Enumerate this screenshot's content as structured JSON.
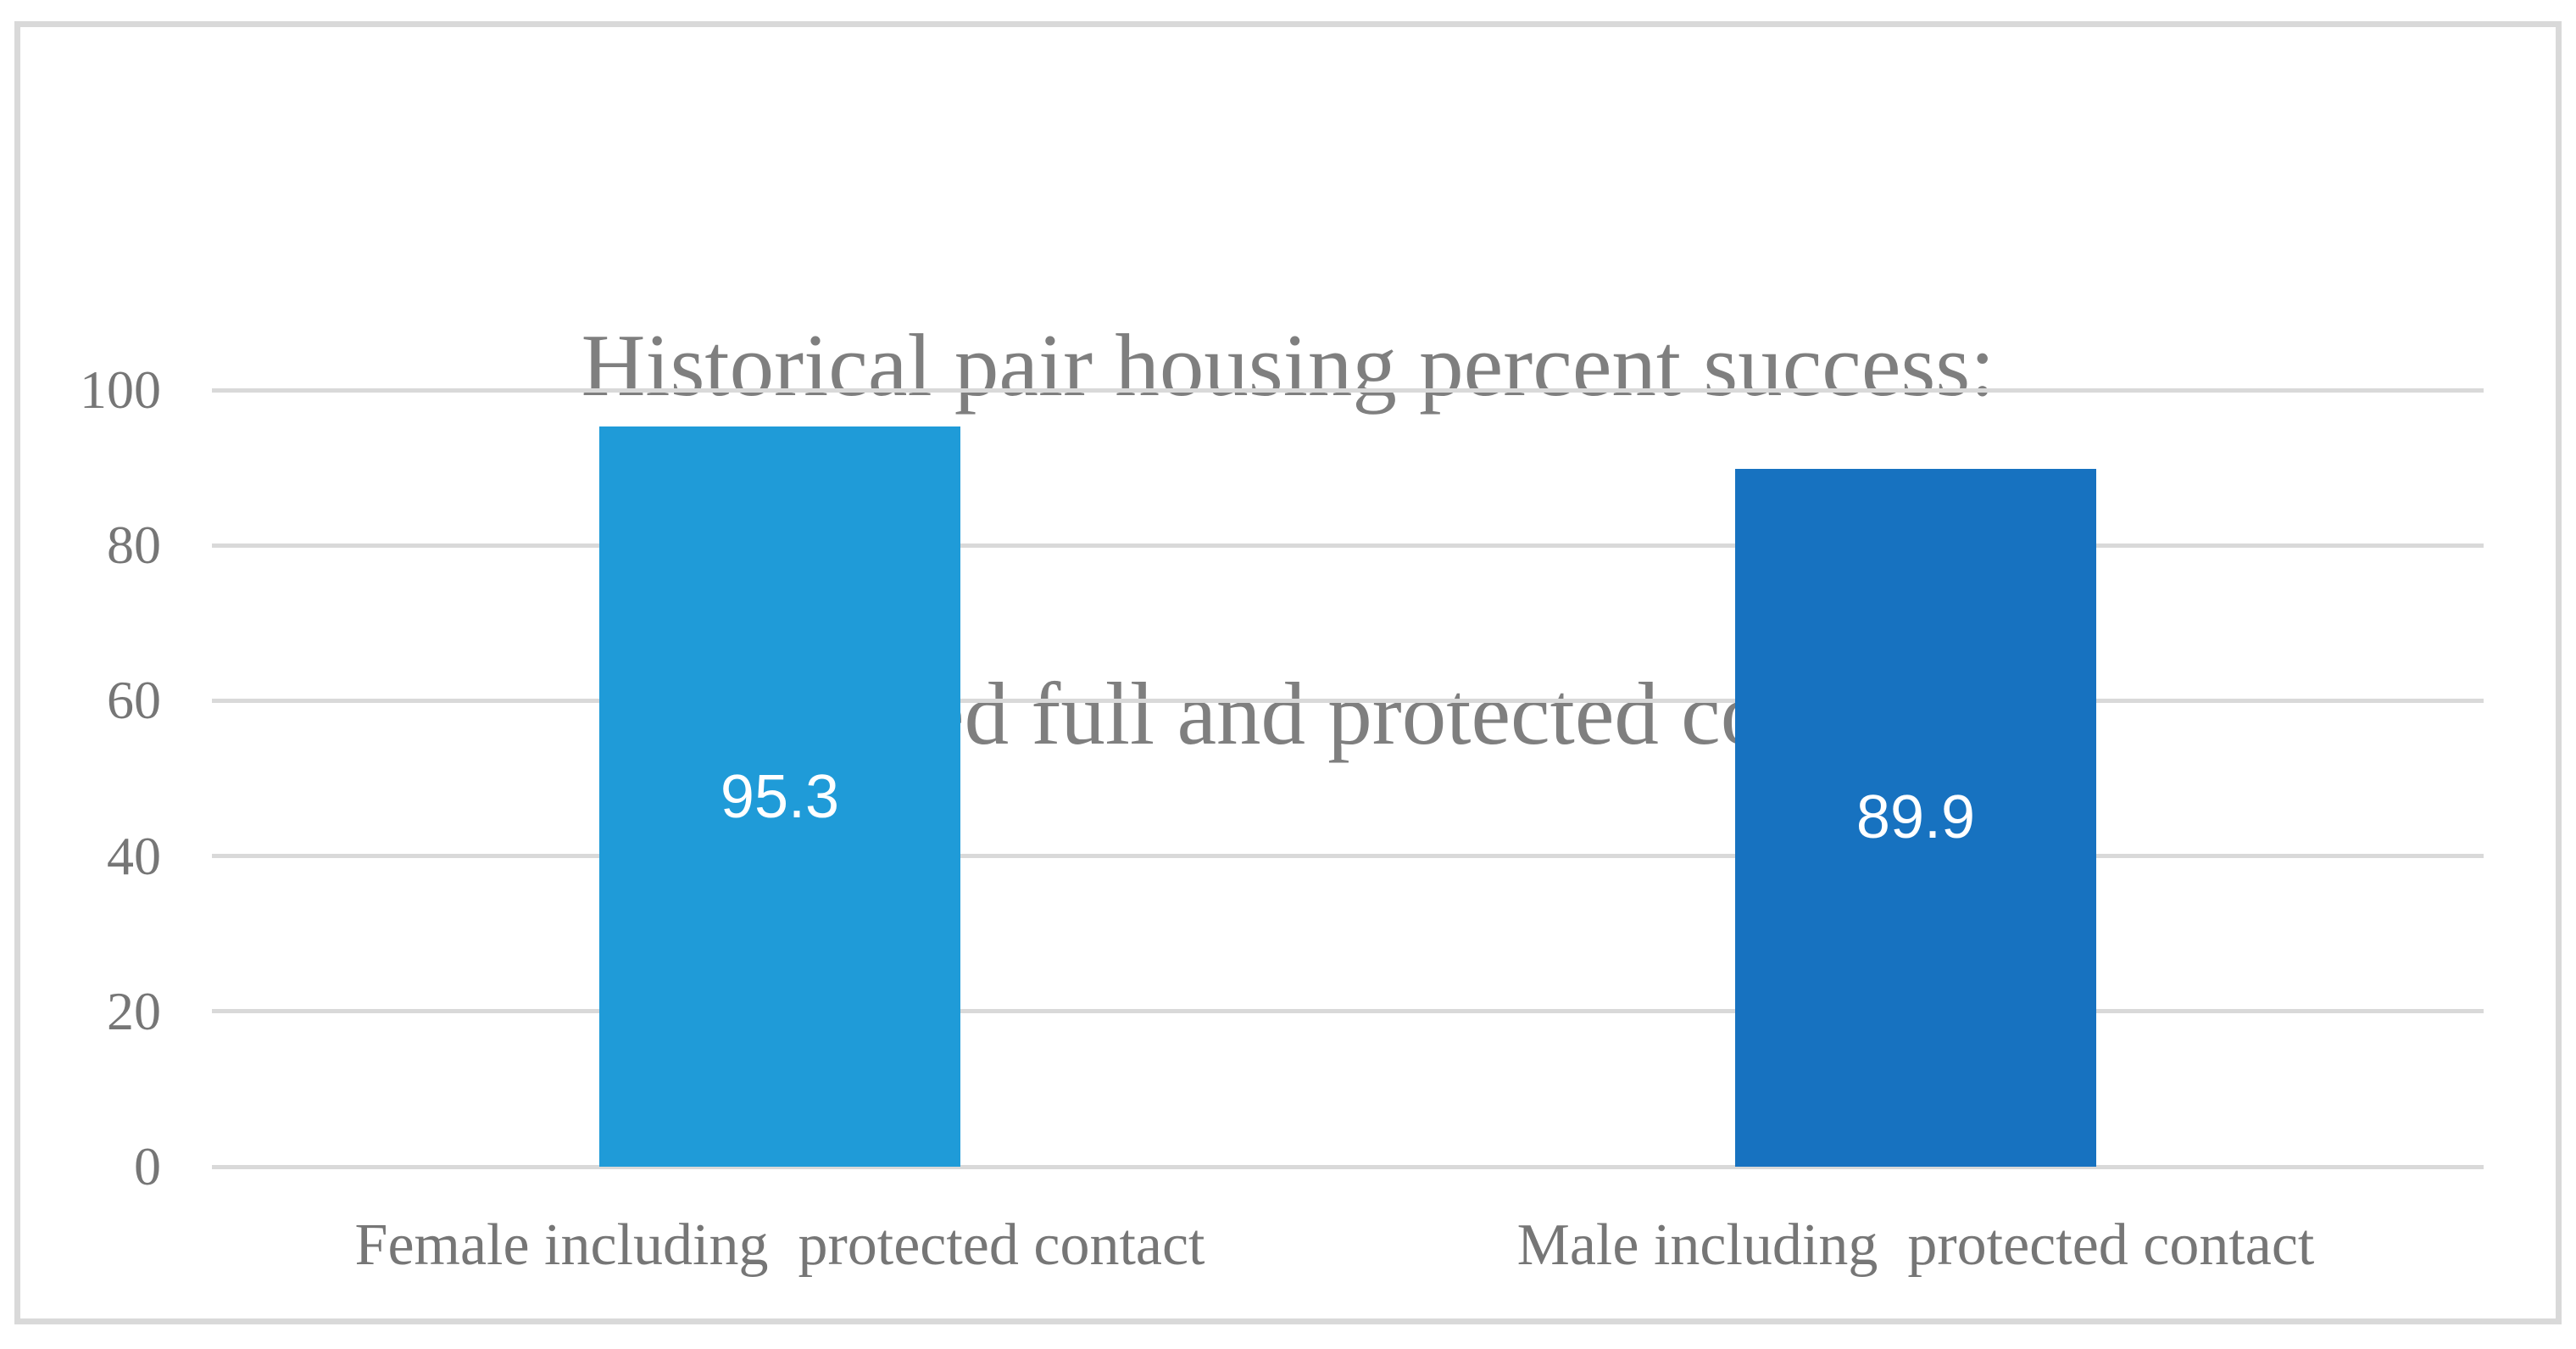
{
  "chart": {
    "title_lines": [
      "Historical pair housing percent success:",
      "Combined full and protected contact"
    ]
  },
  "chart_data": {
    "type": "bar",
    "title": "Historical pair housing percent success: Combined full and protected contact",
    "categories": [
      "Female including  protected contact",
      "Male including  protected contact"
    ],
    "values": [
      95.3,
      89.9
    ],
    "data_labels": [
      "95.3",
      "89.9"
    ],
    "xlabel": "",
    "ylabel": "",
    "ylim": [
      0,
      100
    ],
    "y_ticks": [
      0,
      20,
      40,
      60,
      80,
      100
    ],
    "grid": "horizontal",
    "legend": "none",
    "colors": {
      "bars": [
        "#1F9BD8",
        "#1772C0"
      ],
      "gridline": "#D9D9D9",
      "frame_border": "#D9D9D9",
      "title_text": "#7F7F7F",
      "axis_text": "#767676",
      "data_label_text": "#FFFFFF"
    }
  }
}
